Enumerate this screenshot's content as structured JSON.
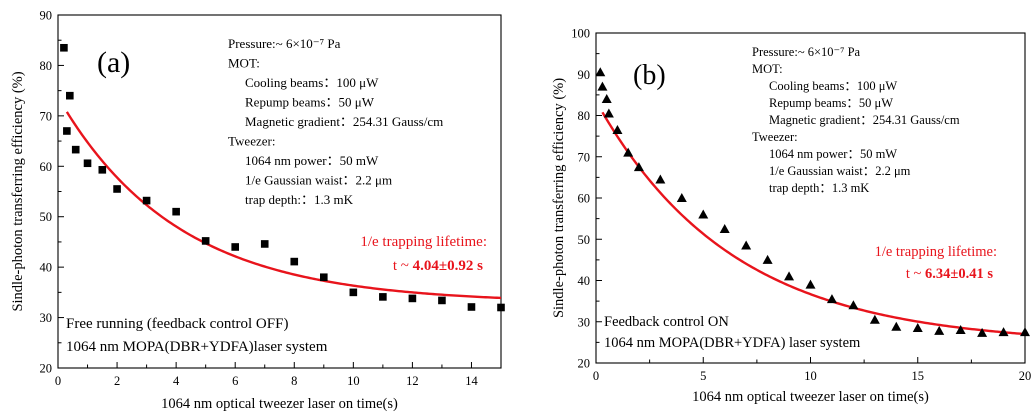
{
  "chart_data": [
    {
      "type": "scatter",
      "panel_label": "(a)",
      "xlabel": "1064 nm optical tweezer laser on time(s)",
      "ylabel": "Sindle-photon transferring efficiency (%)",
      "xlim": [
        0,
        15
      ],
      "ylim": [
        20,
        90
      ],
      "xticks": [
        0,
        2,
        4,
        6,
        8,
        10,
        12,
        14
      ],
      "yticks": [
        20,
        30,
        40,
        50,
        60,
        70,
        80,
        90
      ],
      "marker": "square",
      "marker_color": "#000000",
      "fit_color": "#e8141c",
      "series": [
        {
          "x": [
            0.2,
            0.3,
            0.4,
            0.6,
            1.0,
            1.5,
            2.0,
            3.0,
            4.0,
            5.0,
            6.0,
            7.0,
            8.0,
            9.0,
            10.0,
            11.0,
            12.0,
            13.0,
            14.0,
            15.0
          ],
          "y": [
            83.5,
            67.0,
            74.0,
            63.3,
            60.6,
            59.3,
            55.5,
            53.2,
            51.0,
            45.2,
            44.0,
            44.6,
            41.1,
            38.0,
            35.0,
            34.1,
            33.8,
            33.4,
            32.1,
            32.0
          ]
        }
      ],
      "fit": {
        "x_start": 0.3,
        "x_end": 15,
        "a": 40.8,
        "tau": 4.04,
        "c": 32.9
      },
      "params_lines": [
        "Pressure:~ 6×10⁻⁷ Pa",
        "MOT:",
        "Cooling beams：100 μW",
        "Repump beams：50 μW",
        "Magnetic gradient：254.31 Gauss/cm",
        "Tweezer:",
        "1064 nm power：50 mW",
        "1/e Gaussian waist：2.2 μm",
        "trap depth:：1.3 mK"
      ],
      "lifetime_label": "1/e trapping lifetime:",
      "lifetime_prefix": "t ~ ",
      "lifetime_value": "4.04±0.92 s",
      "note_lines": [
        "Free running (feedback control OFF)",
        "1064 nm MOPA(DBR+YDFA)laser system"
      ]
    },
    {
      "type": "scatter",
      "panel_label": "(b)",
      "xlabel": "1064 nm optical tweezer laser on time(s)",
      "ylabel": "Sindle-photon transferring efficiency (%)",
      "xlim": [
        0,
        20
      ],
      "ylim": [
        20,
        100
      ],
      "xticks": [
        0,
        5,
        10,
        15,
        20
      ],
      "yticks": [
        20,
        30,
        40,
        50,
        60,
        70,
        80,
        90,
        100
      ],
      "marker": "triangle",
      "marker_color": "#000000",
      "fit_color": "#e8141c",
      "series": [
        {
          "x": [
            0.2,
            0.3,
            0.5,
            0.6,
            1.0,
            1.5,
            2.0,
            3.0,
            4.0,
            5.0,
            6.0,
            7.0,
            8.0,
            9.0,
            10.0,
            11.0,
            12.0,
            13.0,
            14.0,
            15.0,
            16.0,
            17.0,
            18.0,
            19.0,
            20.0
          ],
          "y": [
            90.5,
            87.0,
            84.0,
            80.5,
            76.5,
            71.0,
            67.5,
            64.5,
            60.0,
            56.0,
            52.5,
            48.5,
            45.0,
            41.0,
            39.0,
            35.5,
            34.0,
            30.5,
            28.8,
            28.5,
            27.8,
            28.0,
            27.3,
            27.5,
            27.5
          ]
        }
      ],
      "fit": {
        "x_start": 0.3,
        "x_end": 20,
        "a": 59.0,
        "tau": 6.34,
        "c": 24.5
      },
      "params_lines": [
        "Pressure:~ 6×10⁻⁷ Pa",
        "MOT:",
        "Cooling beams：100 μW",
        "Repump beams：50 μW",
        "Magnetic gradient：254.31 Gauss/cm",
        "Tweezer:",
        "1064 nm power：50 mW",
        "1/e Gaussian waist：2.2 μm",
        "trap depth：1.3 mK"
      ],
      "lifetime_label": "1/e trapping lifetime:",
      "lifetime_prefix": "t ~ ",
      "lifetime_value": "6.34±0.41 s",
      "note_lines": [
        "Feedback control ON",
        "1064 nm MOPA(DBR+YDFA) laser system"
      ]
    }
  ]
}
